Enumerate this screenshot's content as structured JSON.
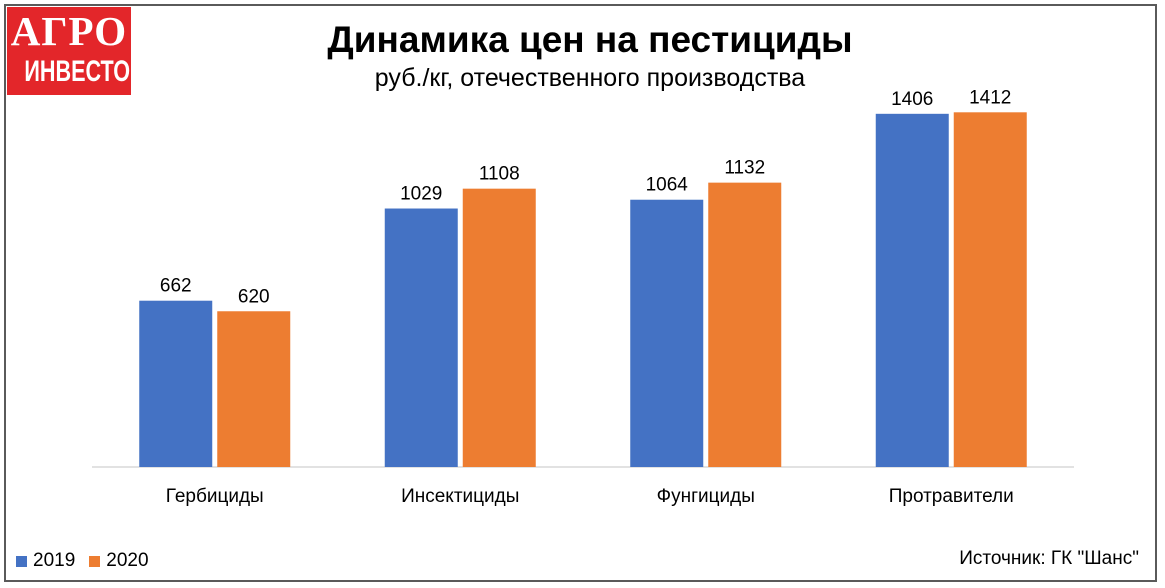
{
  "logo": {
    "line1": "АГРО",
    "line2": "ИНВЕСТОР"
  },
  "colors": {
    "series_2019": "#4472c4",
    "series_2020": "#ed7d31",
    "logo_bg": "#e3262a"
  },
  "chart_data": {
    "type": "bar",
    "title": "Динамика цен на пестициды",
    "subtitle": "руб./кг, отечественного производства",
    "categories": [
      "Гербициды",
      "Инсектициды",
      "Фунгициды",
      "Протравители"
    ],
    "series": [
      {
        "name": "2019",
        "values": [
          662,
          1029,
          1064,
          1406
        ]
      },
      {
        "name": "2020",
        "values": [
          620,
          1108,
          1132,
          1412
        ]
      }
    ],
    "ylim": [
      0,
      1500
    ],
    "grid": false,
    "legend_position": "bottom-left"
  },
  "source": "Источник: ГК \"Шанс\""
}
